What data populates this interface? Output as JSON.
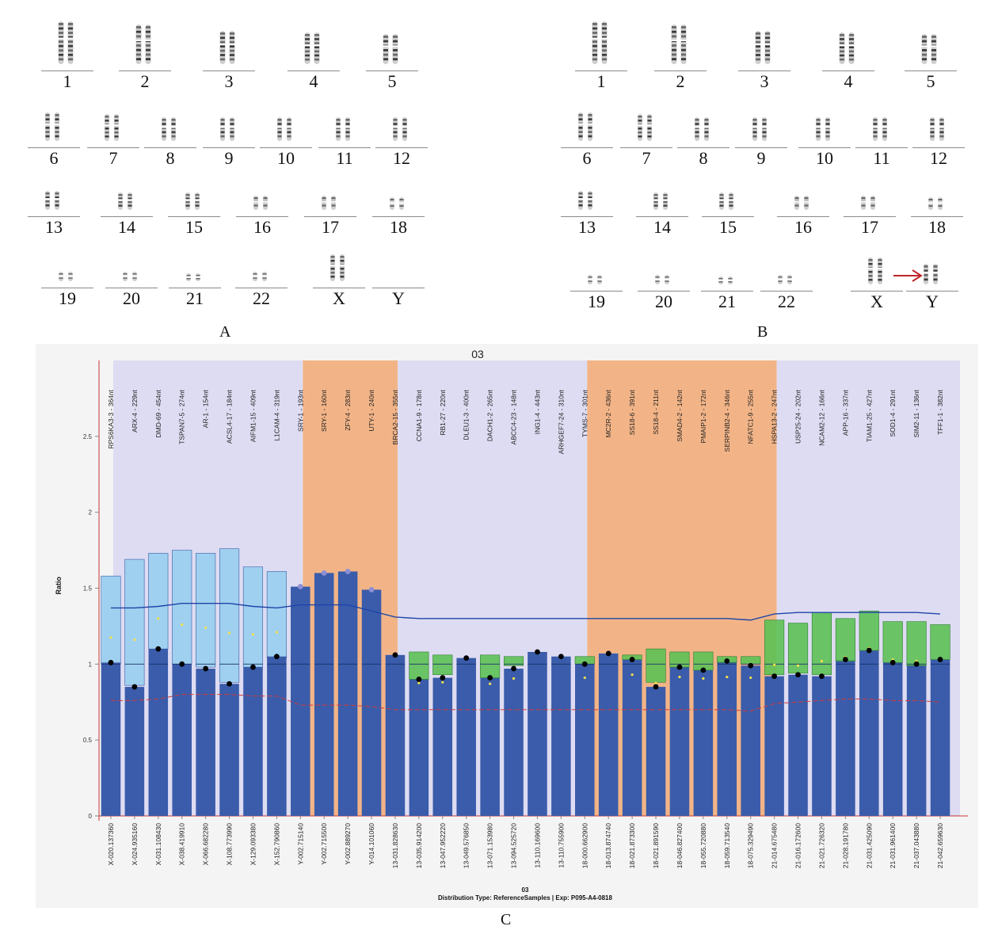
{
  "panel_labels": {
    "a": "A",
    "b": "B",
    "c": "C"
  },
  "karyotype_a": {
    "chromosomes": [
      "1",
      "2",
      "3",
      "4",
      "5",
      "6",
      "7",
      "8",
      "9",
      "10",
      "11",
      "12",
      "13",
      "14",
      "15",
      "16",
      "17",
      "18",
      "19",
      "20",
      "21",
      "22",
      "X",
      "Y"
    ],
    "y_present": false
  },
  "karyotype_b": {
    "chromosomes": [
      "1",
      "2",
      "3",
      "4",
      "5",
      "6",
      "7",
      "8",
      "9",
      "10",
      "11",
      "12",
      "13",
      "14",
      "15",
      "16",
      "17",
      "18",
      "19",
      "20",
      "21",
      "22",
      "X",
      "Y"
    ],
    "y_present": true,
    "arrow_color": "#c0262b"
  },
  "colors": {
    "band_lavender": "#dedcf2",
    "band_orange": "#f2b487",
    "bar_blue": "#3a5caa",
    "box_light_blue": "#9fd0ef",
    "box_green": "#5dc155",
    "trend_blue": "#1f45a8",
    "trend_red": "#d23a3a"
  },
  "chart_data": {
    "type": "bar",
    "title": "03",
    "ylabel": "Ratio",
    "xlabel": "03",
    "footer": "Distribution Type: ReferenceSamples | Exp: P095-A4-0818",
    "ylim": [
      0,
      3.0
    ],
    "yticks": [
      "0",
      "0.5",
      "1",
      "1.5",
      "2",
      "2.5"
    ],
    "groups": [
      {
        "label_count": 8,
        "color": "lavender"
      },
      {
        "label_count": 4,
        "color": "orange"
      },
      {
        "label_count": 8,
        "color": "lavender"
      },
      {
        "label_count": 8,
        "color": "orange"
      },
      {
        "label_count": 8,
        "color": "lavender"
      }
    ],
    "probes": [
      "RPS6KA3-3 - 364nt",
      "ARX-4 - 229nt",
      "DMD-69 - 454nt",
      "TSPAN7-5 - 274nt",
      "AR-1 - 154nt",
      "ACSL4-17 - 184nt",
      "AIFM1-15 - 409nt",
      "L1CAM-4 - 319nt",
      "SRY-1 - 193nt",
      "SRY-1 - 160nt",
      "ZFY-4 - 283nt",
      "UTY-1 - 240nt",
      "BRCA2-15 - 355nt",
      "CCNA1-9 - 178nt",
      "RB1-27 - 220nt",
      "DLEU1-3 - 400nt",
      "DACH1-2 - 265nt",
      "ABCC4-23 - 148nt",
      "ING1-4 - 443nt",
      "ARHGEF7-24 - 310nt",
      "TYMS-7 - 301nt",
      "MC2R-2 - 436nt",
      "SS18-6 - 391nt",
      "SS18-4 - 211nt",
      "SMAD4-2 - 142nt",
      "PMAIP1-2 - 172nt",
      "SERPINB2-4 - 346nt",
      "NFATC1-9 - 255nt",
      "HSPA13-2 - 247nt",
      "USP25-24 - 202nt",
      "NCAM2-12 - 166nt",
      "APP-16 - 337nt",
      "TIAM1-25 - 427nt",
      "SOD1-4 - 291nt",
      "SIM2-11 - 136nt",
      "TFF1-1 - 382nt"
    ],
    "categories": [
      "X-020.137360",
      "X-024.935160",
      "X-031.108430",
      "X-038.419910",
      "X-066.682280",
      "X-108.773990",
      "X-129.093380",
      "X-152.790860",
      "Y-002.715140",
      "Y-002.715500",
      "Y-002.889270",
      "Y-014.101060",
      "13-031.828630",
      "13-035.914200",
      "13-047.952220",
      "13-049.576850",
      "13-071.153980",
      "13-094.525720",
      "13-110.169600",
      "13-110.755900",
      "18-000.662900",
      "18-013.874740",
      "18-021.873300",
      "18-021.891590",
      "18-046.827400",
      "18-055.720880",
      "18-059.713540",
      "18-075.329490",
      "21-014.675480",
      "21-016.172600",
      "21-021.726320",
      "21-028.191780",
      "21-031.425090",
      "21-031.961400",
      "21-037.043880",
      "21-042.659630"
    ],
    "series": [
      {
        "name": "",
        "values": [
          1.01,
          0.85,
          1.1,
          1.0,
          0.97,
          0.87,
          0.98,
          1.05,
          1.51,
          1.6,
          1.61,
          1.49,
          1.06,
          0.9,
          0.91,
          1.04,
          0.91,
          0.97,
          1.08,
          1.05,
          1.0,
          1.07,
          1.03,
          0.85,
          0.98,
          0.96,
          1.02,
          0.99,
          0.92,
          0.93,
          0.92,
          1.03,
          1.09,
          1.01,
          1.0,
          1.03
        ]
      }
    ],
    "ranges": [
      [
        1.0,
        1.58
      ],
      [
        0.86,
        1.69
      ],
      [
        1.1,
        1.73
      ],
      [
        1.0,
        1.75
      ],
      [
        0.98,
        1.73
      ],
      [
        0.88,
        1.76
      ],
      [
        0.98,
        1.64
      ],
      [
        1.04,
        1.61
      ],
      null,
      null,
      null,
      null,
      null,
      [
        0.9,
        1.08
      ],
      [
        0.93,
        1.06
      ],
      null,
      [
        0.91,
        1.06
      ],
      [
        0.99,
        1.05
      ],
      null,
      null,
      [
        1.0,
        1.05
      ],
      null,
      [
        1.03,
        1.06
      ],
      [
        0.88,
        1.1
      ],
      [
        0.98,
        1.08
      ],
      [
        0.96,
        1.08
      ],
      [
        1.01,
        1.05
      ],
      [
        1.0,
        1.05
      ],
      [
        0.93,
        1.29
      ],
      [
        0.94,
        1.27
      ],
      [
        0.93,
        1.34
      ],
      [
        1.02,
        1.3
      ],
      [
        1.09,
        1.35
      ],
      [
        1.01,
        1.28
      ],
      [
        0.99,
        1.28
      ],
      [
        1.03,
        1.26
      ]
    ],
    "upper_trend": [
      1.37,
      1.37,
      1.38,
      1.4,
      1.4,
      1.4,
      1.38,
      1.37,
      1.39,
      1.39,
      1.39,
      1.35,
      1.31,
      1.3,
      1.3,
      1.3,
      1.3,
      1.3,
      1.3,
      1.3,
      1.3,
      1.3,
      1.3,
      1.3,
      1.3,
      1.3,
      1.3,
      1.29,
      1.33,
      1.34,
      1.34,
      1.34,
      1.34,
      1.34,
      1.34,
      1.33
    ],
    "lower_trend": [
      0.76,
      0.76,
      0.77,
      0.8,
      0.8,
      0.8,
      0.79,
      0.79,
      0.73,
      0.73,
      0.73,
      0.72,
      0.7,
      0.7,
      0.7,
      0.7,
      0.7,
      0.7,
      0.7,
      0.7,
      0.7,
      0.7,
      0.7,
      0.7,
      0.7,
      0.7,
      0.7,
      0.69,
      0.74,
      0.75,
      0.76,
      0.77,
      0.77,
      0.76,
      0.76,
      0.75
    ],
    "grid": false,
    "legend": "none"
  }
}
